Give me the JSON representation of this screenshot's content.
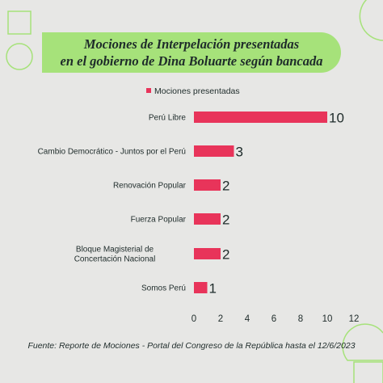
{
  "title": {
    "line1": "Mociones de Interpelación presentadas",
    "line2": "en el gobierno de Dina Boluarte según bancada"
  },
  "source": "Fuente: Reporte de Mociones - Portal del Congreso de la República hasta el 12/6/2023",
  "colors": {
    "background": "#e7e7e5",
    "banner": "#a6e27a",
    "bar": "#e8345a",
    "text": "#1e2b2a",
    "deco_outline": "#a6e27a"
  },
  "chart_data": {
    "type": "bar",
    "orientation": "horizontal",
    "categories": [
      "Perú Libre",
      "Cambio Democrático - Juntos por el Perú",
      "Renovación Popular",
      "Fuerza Popular",
      "Bloque Magisterial de Concertación Nacional",
      "Somos Perú"
    ],
    "series": [
      {
        "name": "Mociones presentadas",
        "values": [
          10,
          3,
          2,
          2,
          2,
          1
        ]
      }
    ],
    "xlim": [
      0,
      12
    ],
    "xticks": [
      0,
      2,
      4,
      6,
      8,
      10,
      12
    ],
    "legend": "top",
    "grid": false
  }
}
